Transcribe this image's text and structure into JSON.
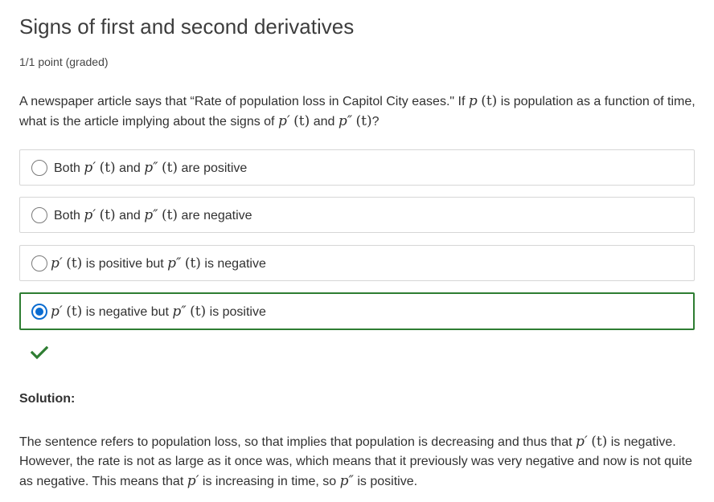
{
  "problem": {
    "title": "Signs of first and second derivatives",
    "points": "1/1 point (graded)",
    "question": {
      "part1": "A newspaper article says that “Rate of population loss in Capitol City eases.\" If ",
      "p": "p",
      "t_paren": "(t)",
      "part2": " is population as a function of time, what is the article implying about the signs of ",
      "pp": "p′",
      "part3": " and ",
      "ppp": "p″",
      "part4": "?"
    },
    "options": [
      {
        "pre": "Both ",
        "a": "p′",
        "mid": " and ",
        "b": "p″",
        "post": " are positive",
        "selected": false
      },
      {
        "pre": "Both ",
        "a": "p′",
        "mid": " and ",
        "b": "p″",
        "post": " are negative",
        "selected": false
      },
      {
        "pre": "",
        "a": "p′",
        "mid": " is positive but ",
        "b": "p″",
        "post": " is negative",
        "selected": false
      },
      {
        "pre": "",
        "a": "p′",
        "mid": " is negative but ",
        "b": "p″",
        "post": " is positive",
        "selected": true
      }
    ],
    "status_icon": "checkmark-icon",
    "accent_color": "#2e7d32",
    "selected_color": "#0a6cd1"
  },
  "solution": {
    "label": "Solution:",
    "s1": "The sentence refers to population loss, so that implies that population is decreasing and thus that ",
    "pp": "p′",
    "t_paren": "(t)",
    "s2": " is negative. However, the rate is not as large as it once was, which means that it previously was very negative and now is not quite as negative. This means that ",
    "s3": " is increasing in time, so ",
    "ppp": "p″",
    "s4": " is positive."
  }
}
